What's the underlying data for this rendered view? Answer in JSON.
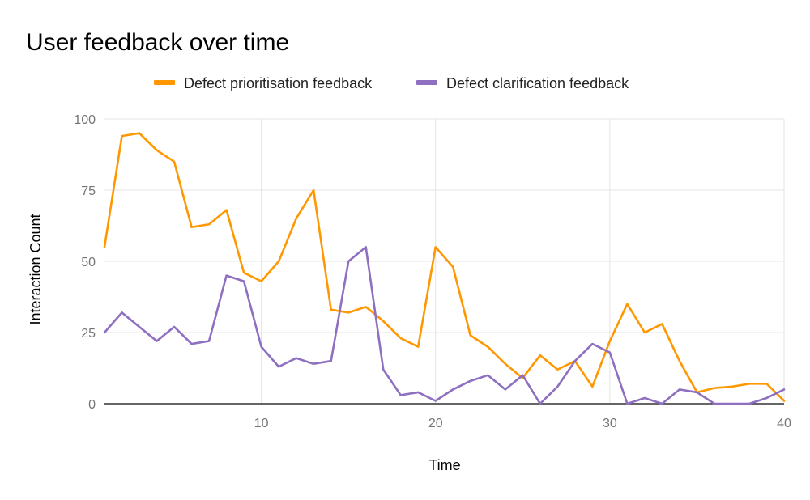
{
  "chart_data": {
    "type": "line",
    "title": "User feedback over time",
    "xlabel": "Time",
    "ylabel": "Interaction Count",
    "xlim": [
      1,
      40
    ],
    "ylim": [
      0,
      100
    ],
    "x_ticks": [
      10,
      20,
      30,
      40
    ],
    "y_ticks": [
      0,
      25,
      50,
      75,
      100
    ],
    "grid": true,
    "legend_position": "top",
    "x": [
      1,
      2,
      3,
      4,
      5,
      6,
      7,
      8,
      9,
      10,
      11,
      12,
      13,
      14,
      15,
      16,
      17,
      18,
      19,
      20,
      21,
      22,
      23,
      24,
      25,
      26,
      27,
      28,
      29,
      30,
      31,
      32,
      33,
      34,
      35,
      36,
      37,
      38,
      39,
      40
    ],
    "series": [
      {
        "name": "Defect prioritisation feedback",
        "color": "#ff9800",
        "values": [
          55,
          94,
          95,
          89,
          85,
          62,
          63,
          68,
          46,
          43,
          50,
          65,
          75,
          33,
          32,
          34,
          29,
          23,
          20,
          55,
          48,
          24,
          20,
          14,
          9,
          17,
          12,
          15,
          6,
          22,
          35,
          25,
          28,
          15,
          4,
          5.5,
          6,
          7,
          7,
          1
        ]
      },
      {
        "name": "Defect clarification feedback",
        "color": "#8e6fc0",
        "values": [
          25,
          32,
          27,
          22,
          27,
          21,
          22,
          45,
          43,
          20,
          13,
          16,
          14,
          15,
          50,
          55,
          12,
          3,
          4,
          1,
          5,
          8,
          10,
          5,
          10,
          0,
          6,
          15,
          21,
          18,
          0,
          2,
          0,
          5,
          4,
          0,
          0,
          0,
          2,
          5
        ]
      }
    ]
  }
}
